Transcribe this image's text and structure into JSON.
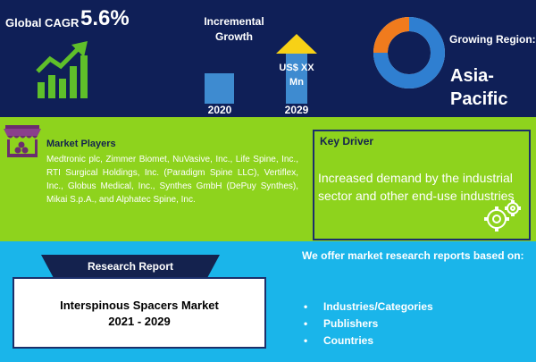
{
  "top": {
    "cagr_label": "Global CAGR",
    "cagr_value": "5.6%",
    "incremental_title": "Incremental Growth",
    "year_start": "2020",
    "year_end": "2029",
    "end_value": "US$ XX Mn",
    "region_label": "Growing Region:",
    "region_value": "Asia-Pacific"
  },
  "middle": {
    "players_title": "Market Players",
    "players_text": "Medtronic plc, Zimmer Biomet, NuVasive, Inc., Life Spine, Inc., RTI Surgical Holdings, Inc. (Paradigm Spine LLC), Vertiflex, Inc., Globus Medical, Inc., Synthes GmbH (DePuy Synthes), Mikai S.p.A., and Alphatec Spine, Inc.",
    "driver_title": "Key Driver",
    "driver_text": "Increased demand by the industrial sector and other end-use industries"
  },
  "bottom": {
    "ribbon_label": "Research Report",
    "report_title": "Interspinous Spacers Market",
    "report_years": "2021 - 2029",
    "offer_title": "We offer market research reports based on:",
    "offer_items": [
      "Industries/Categories",
      "Publishers",
      "Countries"
    ]
  },
  "colors": {
    "top_band": "#0f1f57",
    "middle_band": "#8ed31d",
    "bottom_band": "#1ab5ea",
    "dark_accent": "#14224e",
    "bar_blue": "#3e8bd0",
    "arrow_yellow": "#f7d116"
  },
  "icons": [
    "growth-chart-icon",
    "up-arrow-icon",
    "donut-chart-icon",
    "market-stall-icon",
    "gear-icon"
  ]
}
